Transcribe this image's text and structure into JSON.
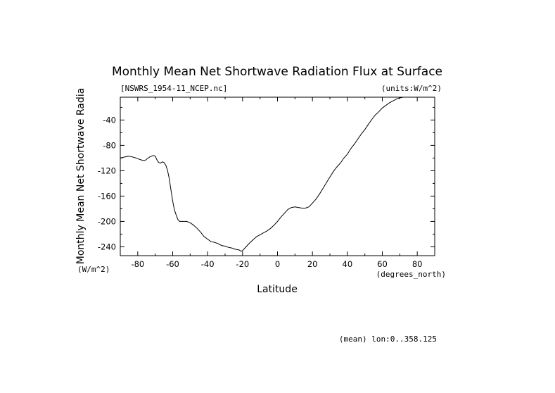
{
  "chart_data": {
    "type": "line",
    "title": "Monthly Mean Net Shortwave Radiation Flux at Surface",
    "subtitle_left": "[NSWRS_1954-11_NCEP.nc]",
    "subtitle_right": "(units:W/m^2)",
    "xlabel": "Latitude",
    "x_units_label": "(degrees_north)",
    "ylabel": "Monthly Mean Net Shortwave Radia",
    "y_units_label": "(W/m^2)",
    "footnote": "(mean) lon:0..358.125",
    "xlim": [
      -90,
      90
    ],
    "ylim": [
      -254,
      -4
    ],
    "x_ticks": [
      -80,
      -60,
      -40,
      -20,
      0,
      20,
      40,
      60,
      80
    ],
    "y_ticks": [
      -40,
      -80,
      -120,
      -160,
      -200,
      -240
    ],
    "grid": false,
    "series": [
      {
        "x": [
          -90,
          -87,
          -85,
          -82,
          -80,
          -78,
          -76,
          -74,
          -73,
          -72,
          -71,
          -70,
          -69,
          -68,
          -67,
          -66,
          -65,
          -64,
          -63,
          -62,
          -61,
          -60,
          -59,
          -58,
          -57,
          -56,
          -55,
          -54,
          -52,
          -50,
          -48,
          -46,
          -44,
          -42,
          -40,
          -38,
          -36,
          -34,
          -32,
          -30,
          -28,
          -26,
          -24,
          -22,
          -21,
          -20,
          -18,
          -16,
          -14,
          -12,
          -10,
          -8,
          -6,
          -4,
          -2,
          0,
          2,
          4,
          6,
          8,
          10,
          12,
          14,
          16,
          18,
          20,
          22,
          24,
          26,
          28,
          30,
          32,
          34,
          36,
          38,
          40,
          42,
          44,
          46,
          48,
          50,
          52,
          54,
          56,
          58,
          60,
          62,
          64,
          66,
          68,
          70,
          72,
          74
        ],
        "values": [
          -100,
          -98,
          -97,
          -99,
          -101,
          -103,
          -104,
          -100,
          -98,
          -97,
          -96,
          -97,
          -103,
          -107,
          -108,
          -106,
          -107,
          -111,
          -119,
          -132,
          -150,
          -168,
          -182,
          -190,
          -197,
          -200,
          -200,
          -200,
          -200,
          -202,
          -206,
          -211,
          -217,
          -224,
          -228,
          -232,
          -233,
          -235,
          -238,
          -239,
          -241,
          -242,
          -244,
          -245,
          -247,
          -246,
          -240,
          -234,
          -229,
          -224,
          -221,
          -218,
          -215,
          -211,
          -206,
          -200,
          -193,
          -187,
          -181,
          -178,
          -177,
          -178,
          -179,
          -179,
          -177,
          -171,
          -165,
          -157,
          -148,
          -139,
          -130,
          -121,
          -114,
          -108,
          -100,
          -94,
          -85,
          -78,
          -70,
          -62,
          -55,
          -47,
          -39,
          -32,
          -27,
          -21,
          -17,
          -13,
          -10,
          -7,
          -5,
          -4,
          -4
        ]
      }
    ]
  }
}
